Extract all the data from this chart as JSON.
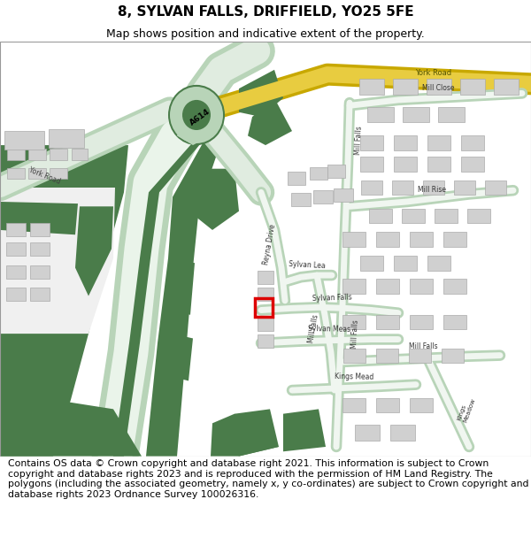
{
  "title": "8, SYLVAN FALLS, DRIFFIELD, YO25 5FE",
  "subtitle": "Map shows position and indicative extent of the property.",
  "footer": "Contains OS data © Crown copyright and database right 2021. This information is subject to Crown copyright and database rights 2023 and is reproduced with the permission of HM Land Registry. The polygons (including the associated geometry, namely x, y co-ordinates) are subject to Crown copyright and database rights 2023 Ordnance Survey 100026316.",
  "bg_color": "#ffffff",
  "road_light_green": "#b8d4b8",
  "road_mid_green": "#8ab88a",
  "road_dark_green": "#4a7c4a",
  "road_yellow": "#e8c840",
  "road_pale": "#e8f0e8",
  "building_color": "#d0d0d0",
  "building_edge": "#aaaaaa",
  "property_color": "#ff0000",
  "title_fontsize": 11,
  "subtitle_fontsize": 9,
  "footer_fontsize": 7.8
}
